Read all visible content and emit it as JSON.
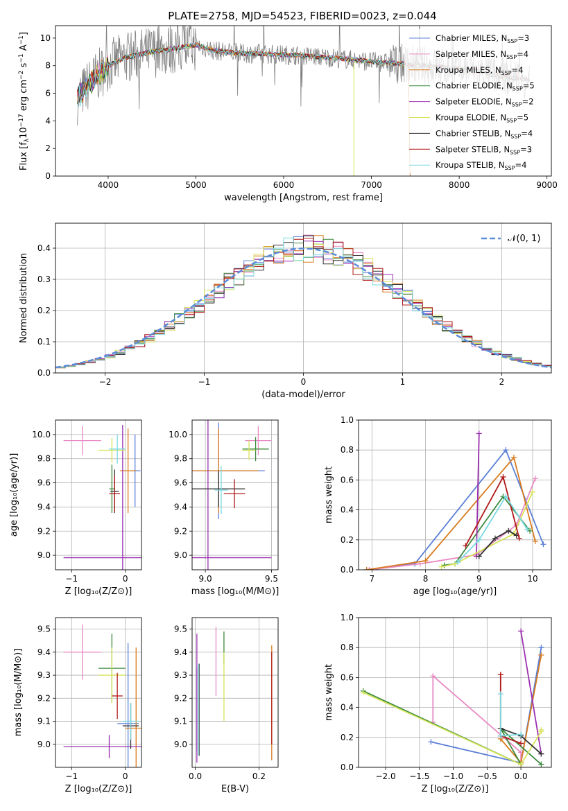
{
  "figure": {
    "title": "PLATE=2758, MJD=54523, FIBERID=0023, z=0.044"
  },
  "legend_models": [
    {
      "label": "Chabrier MILES, N",
      "sub": "SSP",
      "tail": "=3",
      "color": "#5b7fd6"
    },
    {
      "label": "Salpeter MILES, N",
      "sub": "SSP",
      "tail": "=4",
      "color": "#e88ac4"
    },
    {
      "label": "Kroupa MILES, N",
      "sub": "SSP",
      "tail": "=4",
      "color": "#d97a1c"
    },
    {
      "label": "Chabrier ELODIE, N",
      "sub": "SSP",
      "tail": "=5",
      "color": "#3b8a3b"
    },
    {
      "label": "Salpeter ELODIE, N",
      "sub": "SSP",
      "tail": "=2",
      "color": "#9b30b0"
    },
    {
      "label": "Kroupa ELODIE, N",
      "sub": "SSP",
      "tail": "=5",
      "color": "#d6e35a"
    },
    {
      "label": "Chabrier STELIB, N",
      "sub": "SSP",
      "tail": "=4",
      "color": "#303030"
    },
    {
      "label": "Salpeter STELIB, N",
      "sub": "SSP",
      "tail": "=3",
      "color": "#b01818"
    },
    {
      "label": "Kroupa STELIB, N",
      "sub": "SSP",
      "tail": "=4",
      "color": "#7ad8e0"
    }
  ],
  "chart_data": [
    {
      "id": "spectrum",
      "type": "line",
      "xlabel": "wavelength [Angstrom, rest frame]",
      "ylabel_main": "Flux [f",
      "ylabel_sub": "λ",
      "ylabel_mid": "10",
      "ylabel_sup1": "−17",
      "ylabel_rest": " erg cm",
      "ylabel_sup2": "−2",
      "ylabel_rest2": " s",
      "ylabel_sup3": "−1",
      "ylabel_rest3": " A",
      "ylabel_sup4": "−1",
      "ylabel_end": "]",
      "xlim": [
        3400,
        9050
      ],
      "ylim": [
        0,
        10.9
      ],
      "xticks": [
        4000,
        5000,
        6000,
        7000,
        8000,
        9000
      ],
      "yticks": [
        0,
        2,
        4,
        6,
        8,
        10
      ],
      "data_color": "#808080",
      "continuum": {
        "x": [
          3650,
          3800,
          4000,
          4200,
          4500,
          4800,
          5000,
          5200,
          5500,
          6000,
          6500,
          7000,
          7400,
          7800,
          8200,
          8500,
          8800
        ],
        "y": [
          5.6,
          6.8,
          8.0,
          8.6,
          9.0,
          9.3,
          9.5,
          9.1,
          8.9,
          8.8,
          8.6,
          8.3,
          8.1,
          7.9,
          7.6,
          7.2,
          7.0
        ]
      },
      "data_range": [
        3650,
        8800
      ],
      "data_noise": 1.2
    },
    {
      "id": "residuals",
      "type": "step",
      "xlabel": "(data-model)/error",
      "ylabel": "Normed distribution",
      "xlim": [
        -2.5,
        2.5
      ],
      "ylim": [
        0,
        0.48
      ],
      "xticks": [
        -2,
        -1,
        0,
        1,
        2
      ],
      "yticks": [
        0.0,
        0.1,
        0.2,
        0.3,
        0.4
      ],
      "bins": [
        -2.5,
        2.5,
        50
      ],
      "curve_label": "𝒩(0, 1)",
      "curve_color": "#5b8bd9"
    },
    {
      "id": "z_age",
      "type": "errorbar",
      "xlabel": "Z [log₁₀(Z/Z⊙)]",
      "ylabel": "age  [log₁₀(age/yr)]",
      "xlim": [
        -1.3,
        0.3
      ],
      "ylim": [
        8.88,
        10.12
      ],
      "xticks": [
        -1,
        0
      ],
      "yticks": [
        9.0,
        9.2,
        9.4,
        9.6,
        9.8,
        10.0
      ],
      "points": [
        {
          "x": 0.18,
          "y": 9.7,
          "xe": 0.1,
          "ye": 0.3,
          "c": 0
        },
        {
          "x": -0.8,
          "y": 9.95,
          "xe": 0.35,
          "ye": 0.12,
          "c": 1
        },
        {
          "x": 0.05,
          "y": 9.7,
          "xe": 0.15,
          "ye": 0.35,
          "c": 2
        },
        {
          "x": -0.25,
          "y": 9.55,
          "xe": 0.05,
          "ye": 0.2,
          "c": 3
        },
        {
          "x": -0.05,
          "y": 8.98,
          "xe": 1.1,
          "ye": 1.1,
          "c": 4
        },
        {
          "x": -0.25,
          "y": 9.87,
          "xe": 0.25,
          "ye": 0.1,
          "c": 5
        },
        {
          "x": -0.2,
          "y": 9.53,
          "xe": 0.08,
          "ye": 0.18,
          "c": 6
        },
        {
          "x": -0.2,
          "y": 9.51,
          "xe": 0.1,
          "ye": 0.15,
          "c": 7
        },
        {
          "x": -0.15,
          "y": 9.88,
          "xe": 0.15,
          "ye": 0.12,
          "c": 8
        }
      ]
    },
    {
      "id": "mass_age",
      "type": "errorbar",
      "xlabel": "mass [log₁₀(M/M⊙)]",
      "ylabel": "",
      "xlim": [
        8.9,
        9.55
      ],
      "ylim": [
        8.88,
        10.12
      ],
      "xticks": [
        9.0,
        9.5
      ],
      "yticks": [
        9.0,
        9.2,
        9.4,
        9.6,
        9.8,
        10.0
      ],
      "points": [
        {
          "x": 9.1,
          "y": 9.7,
          "xe": 0.35,
          "ye": 0.4,
          "c": 0
        },
        {
          "x": 9.4,
          "y": 9.95,
          "xe": 0.1,
          "ye": 0.12,
          "c": 1
        },
        {
          "x": 9.1,
          "y": 9.7,
          "xe": 0.3,
          "ye": 0.35,
          "c": 2
        },
        {
          "x": 9.38,
          "y": 9.88,
          "xe": 0.1,
          "ye": 0.1,
          "c": 3
        },
        {
          "x": 9.02,
          "y": 8.98,
          "xe": 0.48,
          "ye": 1.2,
          "c": 4
        },
        {
          "x": 9.33,
          "y": 9.87,
          "xe": 0.05,
          "ye": 0.08,
          "c": 5
        },
        {
          "x": 9.1,
          "y": 9.55,
          "xe": 0.2,
          "ye": 0.15,
          "c": 6
        },
        {
          "x": 9.22,
          "y": 9.51,
          "xe": 0.08,
          "ye": 0.12,
          "c": 7
        },
        {
          "x": 9.12,
          "y": 9.54,
          "xe": 0.05,
          "ye": 0.2,
          "c": 8
        }
      ]
    },
    {
      "id": "age_weight",
      "type": "line",
      "xlabel": "age  [log₁₀(age/yr)]",
      "ylabel": "mass weight",
      "xlim": [
        6.75,
        10.35
      ],
      "ylim": [
        0,
        1.0
      ],
      "xticks": [
        7,
        8,
        9,
        10
      ],
      "yticks": [
        0.0,
        0.2,
        0.4,
        0.6,
        0.8,
        1.0
      ],
      "series": [
        {
          "c": 0,
          "x": [
            6.9,
            7.8,
            9.5,
            10.2
          ],
          "y": [
            0.0,
            0.04,
            0.8,
            0.17
          ]
        },
        {
          "c": 1,
          "x": [
            6.95,
            7.9,
            8.95,
            9.7,
            10.05
          ],
          "y": [
            0.0,
            0.04,
            0.1,
            0.3,
            0.61
          ]
        },
        {
          "c": 2,
          "x": [
            6.9,
            8.0,
            9.65,
            10.05
          ],
          "y": [
            0.0,
            0.06,
            0.75,
            0.19
          ]
        },
        {
          "c": 3,
          "x": [
            8.35,
            8.55,
            9.45,
            9.95
          ],
          "y": [
            0.03,
            0.04,
            0.49,
            0.26
          ]
        },
        {
          "c": 4,
          "x": [
            8.95,
            9.0
          ],
          "y": [
            0.09,
            0.91
          ]
        },
        {
          "c": 5,
          "x": [
            8.3,
            8.55,
            9.65,
            10.0
          ],
          "y": [
            0.02,
            0.04,
            0.24,
            0.52
          ]
        },
        {
          "c": 6,
          "x": [
            9.0,
            9.3,
            9.55,
            9.7
          ],
          "y": [
            0.09,
            0.21,
            0.26,
            0.23
          ]
        },
        {
          "c": 7,
          "x": [
            8.75,
            9.45,
            9.75
          ],
          "y": [
            0.16,
            0.62,
            0.21
          ]
        },
        {
          "c": 8,
          "x": [
            8.6,
            9.0,
            9.5,
            9.9
          ],
          "y": [
            0.05,
            0.2,
            0.49,
            0.27
          ]
        }
      ]
    },
    {
      "id": "z_mass",
      "type": "errorbar",
      "xlabel": "Z [log₁₀(Z/Z⊙)]",
      "ylabel": "mass [log₁₀(M/M⊙)]",
      "xlim": [
        -1.3,
        0.3
      ],
      "ylim": [
        8.9,
        9.55
      ],
      "xticks": [
        -1,
        0
      ],
      "yticks": [
        9.0,
        9.1,
        9.2,
        9.3,
        9.4,
        9.5
      ],
      "points": [
        {
          "x": 0.05,
          "y": 9.09,
          "xe": 0.2,
          "ye": 0.35,
          "c": 0
        },
        {
          "x": -0.8,
          "y": 9.4,
          "xe": 0.35,
          "ye": 0.12,
          "c": 1
        },
        {
          "x": 0.2,
          "y": 9.07,
          "xe": 0.2,
          "ye": 0.35,
          "c": 2
        },
        {
          "x": -0.25,
          "y": 9.33,
          "xe": 0.25,
          "ye": 0.15,
          "c": 3
        },
        {
          "x": -0.3,
          "y": 8.99,
          "xe": 0.85,
          "ye": 0.05,
          "c": 4
        },
        {
          "x": -0.25,
          "y": 9.3,
          "xe": 0.25,
          "ye": 0.12,
          "c": 5
        },
        {
          "x": 0.1,
          "y": 9.08,
          "xe": 0.15,
          "ye": 0.1,
          "c": 6
        },
        {
          "x": -0.15,
          "y": 9.21,
          "xe": 0.1,
          "ye": 0.1,
          "c": 7
        },
        {
          "x": 0.1,
          "y": 9.1,
          "xe": 0.15,
          "ye": 0.08,
          "c": 8
        }
      ]
    },
    {
      "id": "ebv_mass",
      "type": "errorbar",
      "xlabel": "E(B-V)",
      "ylabel": "",
      "xlim": [
        -0.01,
        0.26
      ],
      "ylim": [
        8.9,
        9.55
      ],
      "xticks": [
        0.0,
        0.2
      ],
      "yticks": [
        9.0,
        9.1,
        9.2,
        9.3,
        9.4,
        9.5
      ],
      "points": [
        {
          "x": 0.005,
          "y": 9.15,
          "xe": 0,
          "ye": 0.18,
          "c": 0
        },
        {
          "x": 0.065,
          "y": 9.36,
          "xe": 0,
          "ye": 0.15,
          "c": 1
        },
        {
          "x": 0.24,
          "y": 9.18,
          "xe": 0,
          "ye": 0.25,
          "c": 2
        },
        {
          "x": 0.09,
          "y": 9.42,
          "xe": 0,
          "ye": 0.07,
          "c": 3
        },
        {
          "x": 0.005,
          "y": 9.2,
          "xe": 0,
          "ye": 0.28,
          "c": 4
        },
        {
          "x": 0.09,
          "y": 9.25,
          "xe": 0,
          "ye": 0.15,
          "c": 5
        },
        {
          "x": 0.012,
          "y": 9.15,
          "xe": 0,
          "ye": 0.2,
          "c": 6
        },
        {
          "x": 0.24,
          "y": 9.2,
          "xe": 0,
          "ye": 0.2,
          "c": 7
        },
        {
          "x": 0.01,
          "y": 9.15,
          "xe": 0,
          "ye": 0.2,
          "c": 8
        }
      ]
    },
    {
      "id": "z_weight",
      "type": "line",
      "xlabel": "Z [log₁₀(Z/Z⊙)]",
      "ylabel": "mass weight",
      "xlim": [
        -2.4,
        0.45
      ],
      "ylim": [
        0,
        1.0
      ],
      "xticks": [
        -2.0,
        -1.5,
        -1.0,
        -0.5,
        0.0
      ],
      "yticks": [
        0.0,
        0.2,
        0.4,
        0.6,
        0.8,
        1.0
      ],
      "series": [
        {
          "c": 0,
          "x": [
            -1.33,
            0.0,
            0.3
          ],
          "y": [
            0.17,
            0.03,
            0.8
          ]
        },
        {
          "c": 1,
          "x": [
            -1.3,
            -1.3,
            0.0,
            0.0
          ],
          "y": [
            0.3,
            0.61,
            0.1,
            0.0
          ]
        },
        {
          "c": 2,
          "x": [
            -0.3,
            0.0,
            0.3
          ],
          "y": [
            0.19,
            0.03,
            0.75
          ]
        },
        {
          "c": 3,
          "x": [
            -2.33,
            0.0,
            -0.3,
            0.3
          ],
          "y": [
            0.51,
            0.02,
            0.26,
            0.02
          ]
        },
        {
          "c": 4,
          "x": [
            0.0,
            0.3
          ],
          "y": [
            0.91,
            0.09
          ]
        },
        {
          "c": 5,
          "x": [
            -2.33,
            0.0,
            0.3,
            0.3
          ],
          "y": [
            0.5,
            0.02,
            0.24,
            0.25
          ]
        },
        {
          "c": 6,
          "x": [
            -0.3,
            0.0,
            0.3
          ],
          "y": [
            0.26,
            0.21,
            0.09
          ]
        },
        {
          "c": 7,
          "x": [
            -0.3,
            -0.3,
            0.0
          ],
          "y": [
            0.62,
            0.21,
            0.16
          ]
        },
        {
          "c": 8,
          "x": [
            -0.3,
            -0.3,
            0.0
          ],
          "y": [
            0.49,
            0.21,
            0.22
          ]
        }
      ]
    }
  ]
}
